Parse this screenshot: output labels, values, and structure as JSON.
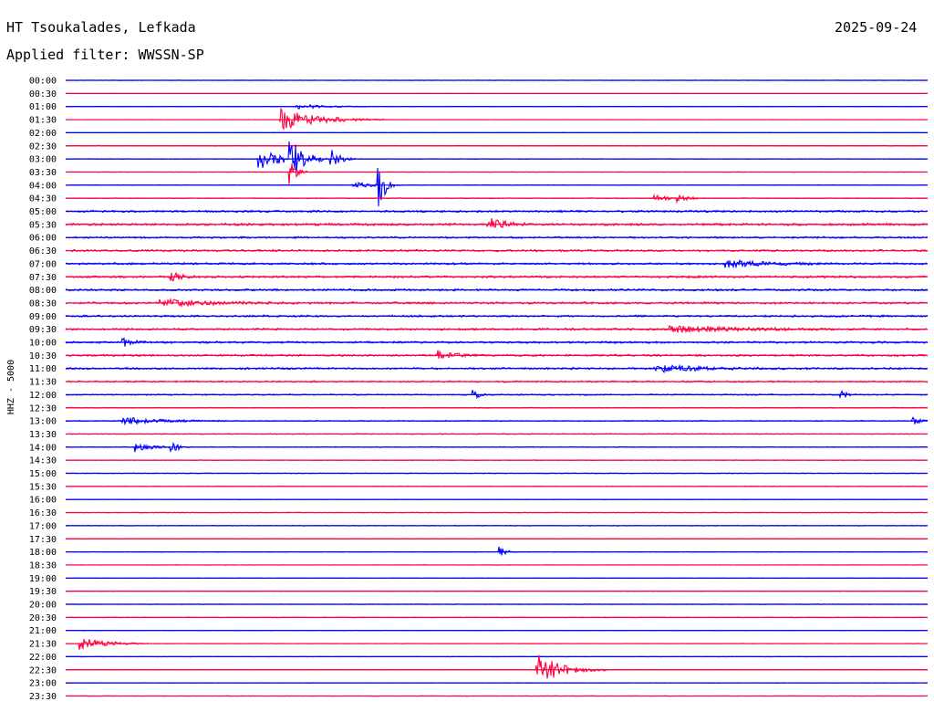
{
  "header": {
    "station": "HT Tsoukalades, Lefkada",
    "date": "2025-09-24",
    "filter": "Applied filter: WWSSN-SP"
  },
  "colors": {
    "even": "#0000ff",
    "odd": "#ff0040"
  },
  "chart_data": {
    "type": "helicorder",
    "ylabel": "HHZ - 5000",
    "row_minutes": 30,
    "row_labels": [
      "00:00",
      "00:30",
      "01:00",
      "01:30",
      "02:00",
      "02:30",
      "03:00",
      "03:30",
      "04:00",
      "04:30",
      "05:00",
      "05:30",
      "06:00",
      "06:30",
      "07:00",
      "07:30",
      "08:00",
      "08:30",
      "09:00",
      "09:30",
      "10:00",
      "10:30",
      "11:00",
      "11:30",
      "12:00",
      "12:30",
      "13:00",
      "13:30",
      "14:00",
      "14:30",
      "15:00",
      "15:30",
      "16:00",
      "16:30",
      "17:00",
      "17:30",
      "18:00",
      "18:30",
      "19:00",
      "19:30",
      "20:00",
      "20:30",
      "21:00",
      "21:30",
      "22:00",
      "22:30",
      "23:00",
      "23:30"
    ],
    "noise_level": [
      0.15,
      0.1,
      0.15,
      0.1,
      0.1,
      0.3,
      0.3,
      0.2,
      0.3,
      0.4,
      1.0,
      1.2,
      0.9,
      1.0,
      1.0,
      1.1,
      1.0,
      1.1,
      1.0,
      1.0,
      1.0,
      1.0,
      1.0,
      0.8,
      0.6,
      0.4,
      0.5,
      0.4,
      0.4,
      0.3,
      0.3,
      0.3,
      0.2,
      0.3,
      0.3,
      0.2,
      0.2,
      0.2,
      0.2,
      0.2,
      0.3,
      0.3,
      0.2,
      0.2,
      0.2,
      0.2,
      0.2,
      0.2
    ],
    "events": [
      {
        "row": 2,
        "minute": 8.0,
        "amp": 3,
        "dur": 1.0
      },
      {
        "row": 3,
        "minute": 7.5,
        "amp": 12,
        "dur": 1.2
      },
      {
        "row": 6,
        "minute": 6.7,
        "amp": 12,
        "dur": 0.8
      },
      {
        "row": 6,
        "minute": 7.8,
        "amp": 22,
        "dur": 0.4
      },
      {
        "row": 6,
        "minute": 9.2,
        "amp": 12,
        "dur": 0.3
      },
      {
        "row": 7,
        "minute": 7.8,
        "amp": 16,
        "dur": 0.2
      },
      {
        "row": 8,
        "minute": 10.9,
        "amp": 30,
        "dur": 0.2
      },
      {
        "row": 8,
        "minute": 10.0,
        "amp": 4,
        "dur": 0.6
      },
      {
        "row": 9,
        "minute": 20.5,
        "amp": 4,
        "dur": 0.5
      },
      {
        "row": 9,
        "minute": 21.3,
        "amp": 4,
        "dur": 0.3
      },
      {
        "row": 11,
        "minute": 14.7,
        "amp": 9,
        "dur": 0.5
      },
      {
        "row": 14,
        "minute": 23.0,
        "amp": 4,
        "dur": 1.2
      },
      {
        "row": 15,
        "minute": 3.7,
        "amp": 6,
        "dur": 0.3
      },
      {
        "row": 17,
        "minute": 3.3,
        "amp": 4,
        "dur": 1.5
      },
      {
        "row": 19,
        "minute": 21.0,
        "amp": 4,
        "dur": 2.0
      },
      {
        "row": 20,
        "minute": 2.0,
        "amp": 5,
        "dur": 0.3
      },
      {
        "row": 21,
        "minute": 13.0,
        "amp": 5,
        "dur": 0.5
      },
      {
        "row": 22,
        "minute": 20.5,
        "amp": 4,
        "dur": 1.5
      },
      {
        "row": 24,
        "minute": 14.2,
        "amp": 5,
        "dur": 0.2
      },
      {
        "row": 24,
        "minute": 27.0,
        "amp": 5,
        "dur": 0.2
      },
      {
        "row": 26,
        "minute": 2.0,
        "amp": 4,
        "dur": 1.2
      },
      {
        "row": 26,
        "minute": 29.5,
        "amp": 5,
        "dur": 0.2
      },
      {
        "row": 28,
        "minute": 2.4,
        "amp": 6,
        "dur": 0.5
      },
      {
        "row": 28,
        "minute": 3.7,
        "amp": 8,
        "dur": 0.2
      },
      {
        "row": 36,
        "minute": 15.1,
        "amp": 6,
        "dur": 0.2
      },
      {
        "row": 43,
        "minute": 0.5,
        "amp": 7,
        "dur": 0.8
      },
      {
        "row": 45,
        "minute": 16.4,
        "amp": 18,
        "dur": 0.8
      }
    ]
  }
}
